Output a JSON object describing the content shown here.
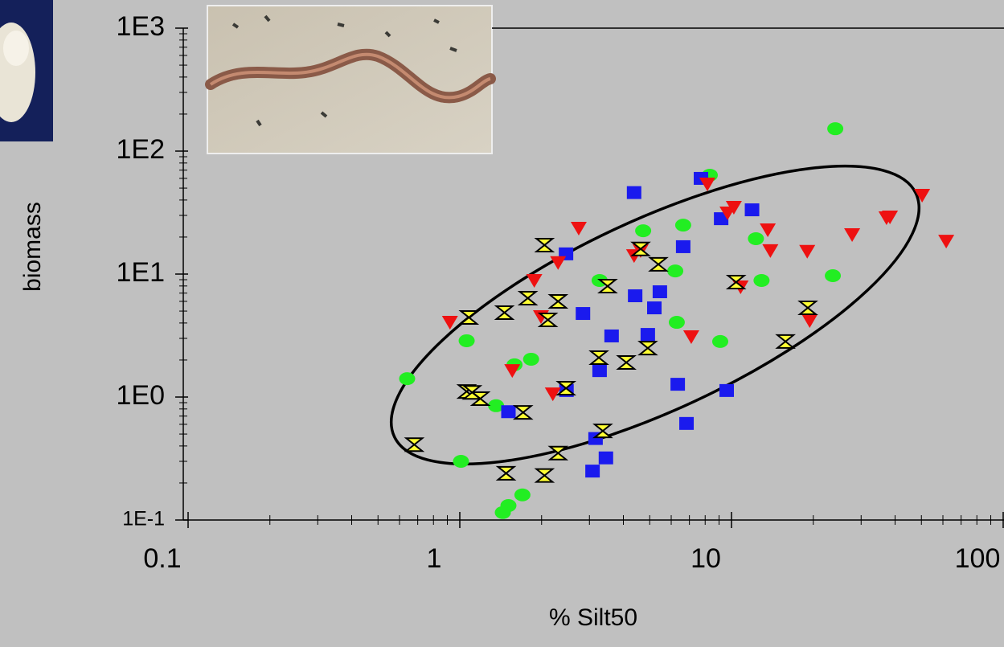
{
  "chart_data": {
    "type": "scatter",
    "x_label": "% Silt50",
    "y_label": "biomass",
    "xscale": "log",
    "yscale": "log",
    "xlim": [
      0.1,
      100
    ],
    "ylim": [
      0.1,
      1000
    ],
    "xticks": [
      0.1,
      1,
      10,
      100
    ],
    "yticks": [
      {
        "value": 0.1,
        "label": "1E-1"
      },
      {
        "value": 1,
        "label": "1E0"
      },
      {
        "value": 10,
        "label": "1E1"
      },
      {
        "value": 100,
        "label": "1E2"
      },
      {
        "value": 1000,
        "label": "1E3"
      }
    ],
    "series": [
      {
        "color": "#22ee22",
        "marker": "circle",
        "x": [
          0.64,
          1.06,
          1.01,
          1.36,
          1.59,
          1.83,
          1.51,
          1.44,
          1.7,
          3.27,
          4.73,
          6.64,
          6.21,
          6.29,
          8.32,
          9.09,
          12.3,
          12.9,
          23.6,
          24.1
        ],
        "values": [
          1.41,
          2.87,
          0.3,
          0.85,
          1.83,
          2.03,
          0.131,
          0.115,
          0.16,
          8.87,
          22.5,
          25,
          10.6,
          4.05,
          63.7,
          2.83,
          19.4,
          8.87,
          9.7,
          152
        ]
      },
      {
        "color": "#1a1aee",
        "marker": "square",
        "x": [
          1.51,
          2.47,
          2.46,
          2.84,
          3.62,
          3.16,
          3.27,
          3.45,
          3.08,
          4.38,
          4.42,
          5.2,
          4.92,
          5.45,
          6.64,
          6.34,
          6.83,
          7.72,
          9.16,
          9.6,
          11.9
        ],
        "values": [
          0.76,
          1.13,
          14.6,
          4.78,
          3.14,
          0.46,
          1.64,
          0.32,
          0.25,
          46,
          6.66,
          5.31,
          3.23,
          7.18,
          16.7,
          1.27,
          0.61,
          60,
          28.2,
          1.13,
          33.3
        ]
      },
      {
        "color": "#ee1111",
        "marker": "triangle",
        "x": [
          0.92,
          1.56,
          1.88,
          1.99,
          2.3,
          2.2,
          2.74,
          4.38,
          4.63,
          7.11,
          8.15,
          9.67,
          10.2,
          10.8,
          13.6,
          13.9,
          19,
          19.4,
          27.8,
          37.2,
          38.3,
          50.3,
          61.7
        ],
        "values": [
          4.05,
          1.64,
          8.87,
          4.5,
          12.4,
          1.06,
          23.6,
          14.1,
          15.5,
          3.09,
          54,
          31.4,
          34.9,
          7.86,
          22.9,
          15.5,
          15.3,
          4.18,
          20.9,
          28.7,
          29.1,
          43.7,
          18.5
        ]
      },
      {
        "color": "#ffff33",
        "marker": "hourglass",
        "x": [
          0.68,
          1.08,
          1.06,
          1.11,
          1.19,
          1.46,
          1.48,
          1.71,
          1.78,
          2.05,
          2.11,
          2.3,
          2.05,
          2.3,
          2.46,
          3.25,
          3.5,
          3.36,
          4.1,
          4.63,
          4.92,
          5.38,
          10.4,
          15.8,
          19.1
        ],
        "values": [
          0.41,
          4.44,
          1.11,
          1.09,
          0.97,
          4.86,
          0.24,
          0.75,
          6.37,
          17.2,
          4.24,
          6,
          0.23,
          0.35,
          1.18,
          2.09,
          7.98,
          0.53,
          1.91,
          16,
          2.5,
          12,
          8.6,
          2.83,
          5.31
        ]
      }
    ]
  }
}
